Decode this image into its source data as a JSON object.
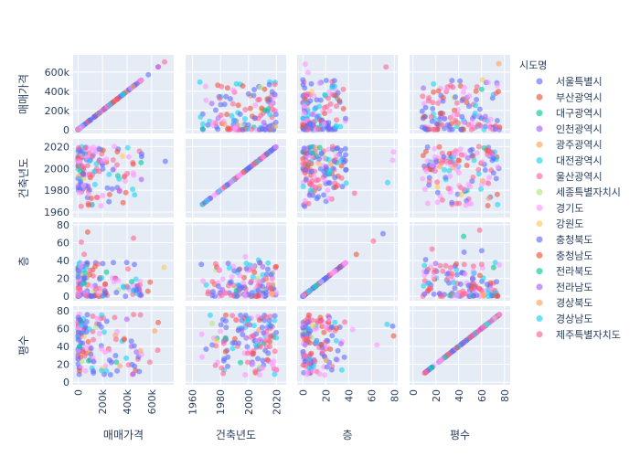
{
  "chart_data": {
    "type": "scatter",
    "subtype": "scatter-matrix",
    "dimensions": [
      "매매가격",
      "건축년도",
      "층",
      "평수"
    ],
    "ranges": {
      "매매가격": [
        -40000,
        780000
      ],
      "건축년도": [
        1955,
        2027
      ],
      "층": [
        -5,
        83
      ],
      "평수": [
        -3,
        85
      ]
    },
    "ticks": {
      "매매가격": {
        "values": [
          0,
          200000,
          400000,
          600000
        ],
        "labels": [
          "0",
          "200k",
          "400k",
          "600k"
        ]
      },
      "매매가격_x": {
        "values": [
          0,
          200000,
          400000,
          600000
        ],
        "labels": [
          "0",
          "200k",
          "400k",
          "600k"
        ]
      },
      "건축년도": {
        "values": [
          1960,
          1980,
          2000,
          2020
        ],
        "labels": [
          "1960",
          "1980",
          "2000",
          "2020"
        ]
      },
      "층": {
        "values": [
          0,
          20,
          40,
          60,
          80
        ],
        "labels": [
          "0",
          "20",
          "40",
          "60",
          "80"
        ]
      },
      "평수": {
        "values": [
          0,
          20,
          40,
          60,
          80
        ],
        "labels": [
          "0",
          "20",
          "40",
          "60",
          "80"
        ]
      }
    },
    "legend": {
      "title": "시도명",
      "position": "right",
      "items": [
        {
          "name": "서울특별시",
          "color": "#636efa"
        },
        {
          "name": "부산광역시",
          "color": "#ef553b"
        },
        {
          "name": "대구광역시",
          "color": "#00cc96"
        },
        {
          "name": "인천광역시",
          "color": "#ab63fa"
        },
        {
          "name": "광주광역시",
          "color": "#ffa15a"
        },
        {
          "name": "대전광역시",
          "color": "#19d3f3"
        },
        {
          "name": "울산광역시",
          "color": "#ff6692"
        },
        {
          "name": "세종특별자치시",
          "color": "#b6e880"
        },
        {
          "name": "경기도",
          "color": "#ff97ff"
        },
        {
          "name": "강원도",
          "color": "#fecb52"
        },
        {
          "name": "충청북도",
          "color": "#636efa"
        },
        {
          "name": "충청남도",
          "color": "#ef553b"
        },
        {
          "name": "전라북도",
          "color": "#00cc96"
        },
        {
          "name": "전라남도",
          "color": "#ab63fa"
        },
        {
          "name": "경상북도",
          "color": "#ffa15a"
        },
        {
          "name": "경상남도",
          "color": "#19d3f3"
        },
        {
          "name": "제주특별자치도",
          "color": "#ff6692"
        }
      ]
    },
    "gridcolor": "#ffffff",
    "plot_bg": "#e5ecf6"
  }
}
